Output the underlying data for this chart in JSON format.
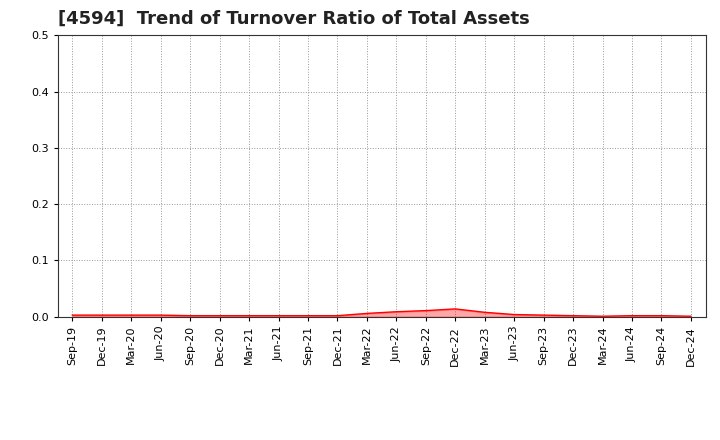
{
  "title": "[4594]  Trend of Turnover Ratio of Total Assets",
  "x_labels": [
    "Sep-19",
    "Dec-19",
    "Mar-20",
    "Jun-20",
    "Sep-20",
    "Dec-20",
    "Mar-21",
    "Jun-21",
    "Sep-21",
    "Dec-21",
    "Mar-22",
    "Jun-22",
    "Sep-22",
    "Dec-22",
    "Mar-23",
    "Jun-23",
    "Sep-23",
    "Dec-23",
    "Mar-24",
    "Jun-24",
    "Sep-24",
    "Dec-24"
  ],
  "values": [
    0.003,
    0.003,
    0.003,
    0.003,
    0.002,
    0.002,
    0.002,
    0.002,
    0.002,
    0.002,
    0.006,
    0.009,
    0.011,
    0.014,
    0.008,
    0.004,
    0.003,
    0.002,
    0.001,
    0.002,
    0.002,
    0.001
  ],
  "line_color": "#ff0000",
  "fill_color": "#ff0000",
  "fill_alpha": 0.35,
  "ylim": [
    0,
    0.5
  ],
  "yticks": [
    0.0,
    0.1,
    0.2,
    0.3,
    0.4,
    0.5
  ],
  "background_color": "#ffffff",
  "grid_color": "#999999",
  "title_fontsize": 13,
  "tick_fontsize": 8,
  "label_rotation": 90
}
